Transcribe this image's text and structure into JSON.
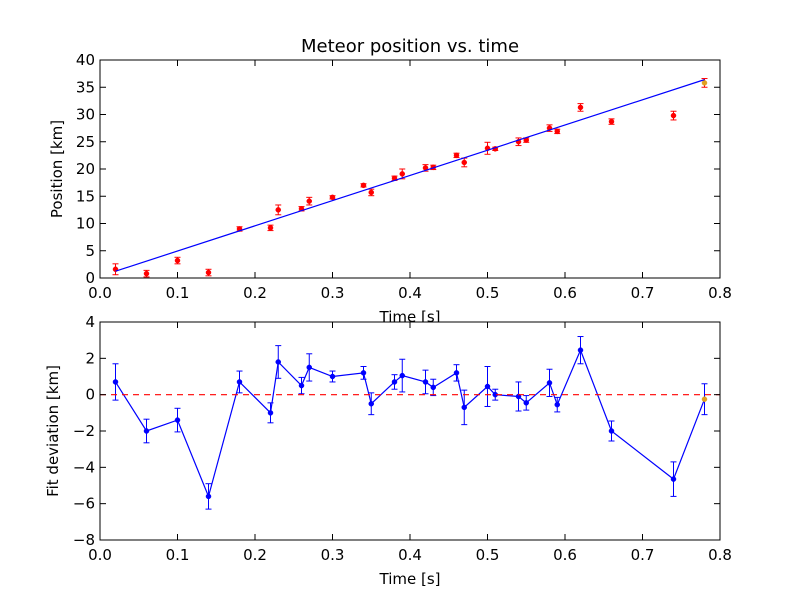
{
  "chart_data": [
    {
      "type": "scatter",
      "title": "Meteor position vs. time",
      "xlabel": "Time [s]",
      "ylabel": "Position [km]",
      "xlim": [
        0.0,
        0.8
      ],
      "ylim": [
        0,
        40
      ],
      "xticks": [
        "0.0",
        "0.1",
        "0.2",
        "0.3",
        "0.4",
        "0.5",
        "0.6",
        "0.7",
        "0.8"
      ],
      "yticks": [
        "0",
        "5",
        "10",
        "15",
        "20",
        "25",
        "30",
        "35",
        "40"
      ],
      "grid": false,
      "legend": "none",
      "series": [
        {
          "kind": "points_with_errorbars",
          "color": "#ff0000",
          "errorbar_color": "#ff0000",
          "x": [
            0.02,
            0.06,
            0.1,
            0.14,
            0.18,
            0.22,
            0.23,
            0.26,
            0.27,
            0.3,
            0.34,
            0.35,
            0.38,
            0.39,
            0.42,
            0.43,
            0.46,
            0.47,
            0.5,
            0.51,
            0.54,
            0.55,
            0.58,
            0.59,
            0.62,
            0.66,
            0.74,
            0.78
          ],
          "y": [
            1.6,
            0.8,
            3.2,
            1.0,
            9.0,
            9.2,
            12.5,
            12.7,
            14.1,
            14.8,
            17.0,
            15.7,
            18.3,
            19.1,
            20.2,
            20.3,
            22.5,
            21.2,
            23.8,
            23.7,
            25.0,
            25.3,
            27.5,
            26.9,
            31.3,
            28.7,
            29.8,
            35.8
          ],
          "yerr": [
            1.0,
            0.6,
            0.6,
            0.6,
            0.4,
            0.5,
            0.9,
            0.4,
            0.7,
            0.3,
            0.3,
            0.6,
            0.4,
            0.9,
            0.6,
            0.4,
            0.4,
            0.8,
            1.1,
            0.3,
            0.7,
            0.4,
            0.6,
            0.4,
            0.7,
            0.5,
            0.8,
            0.8
          ]
        },
        {
          "kind": "fit_line",
          "color": "#0000ff",
          "x": [
            0.02,
            0.78
          ],
          "y": [
            1.25,
            36.4
          ]
        }
      ],
      "last_point_color": "#e0a020"
    },
    {
      "type": "line",
      "title": "",
      "xlabel": "Time [s]",
      "ylabel": "Fit deviation [km]",
      "xlim": [
        0.0,
        0.8
      ],
      "ylim": [
        -8,
        4
      ],
      "xticks": [
        "0.0",
        "0.1",
        "0.2",
        "0.3",
        "0.4",
        "0.5",
        "0.6",
        "0.7",
        "0.8"
      ],
      "yticks": [
        "−8",
        "−6",
        "−4",
        "−2",
        "0",
        "2",
        "4"
      ],
      "grid": false,
      "legend": "none",
      "series": [
        {
          "kind": "line_with_errorbars",
          "color": "#0000ff",
          "x": [
            0.02,
            0.06,
            0.1,
            0.14,
            0.18,
            0.22,
            0.23,
            0.26,
            0.27,
            0.3,
            0.34,
            0.35,
            0.38,
            0.39,
            0.42,
            0.43,
            0.46,
            0.47,
            0.5,
            0.51,
            0.54,
            0.55,
            0.58,
            0.59,
            0.62,
            0.66,
            0.74,
            0.78
          ],
          "y": [
            0.7,
            -2.0,
            -1.4,
            -5.6,
            0.7,
            -1.0,
            1.8,
            0.5,
            1.5,
            1.0,
            1.2,
            -0.5,
            0.7,
            1.05,
            0.7,
            0.4,
            1.2,
            -0.7,
            0.45,
            0.0,
            -0.1,
            -0.45,
            0.65,
            -0.55,
            2.45,
            -2.0,
            -4.65,
            -0.25
          ],
          "yerr": [
            1.0,
            0.65,
            0.65,
            0.7,
            0.6,
            0.55,
            0.9,
            0.45,
            0.75,
            0.3,
            0.35,
            0.6,
            0.4,
            0.9,
            0.65,
            0.45,
            0.45,
            0.95,
            1.1,
            0.3,
            0.8,
            0.4,
            0.75,
            0.4,
            0.75,
            0.55,
            0.95,
            0.85
          ]
        },
        {
          "kind": "reference_line",
          "color": "#ff0000",
          "style": "dashed",
          "y": 0
        }
      ],
      "last_point_color": "#e0a020"
    }
  ]
}
